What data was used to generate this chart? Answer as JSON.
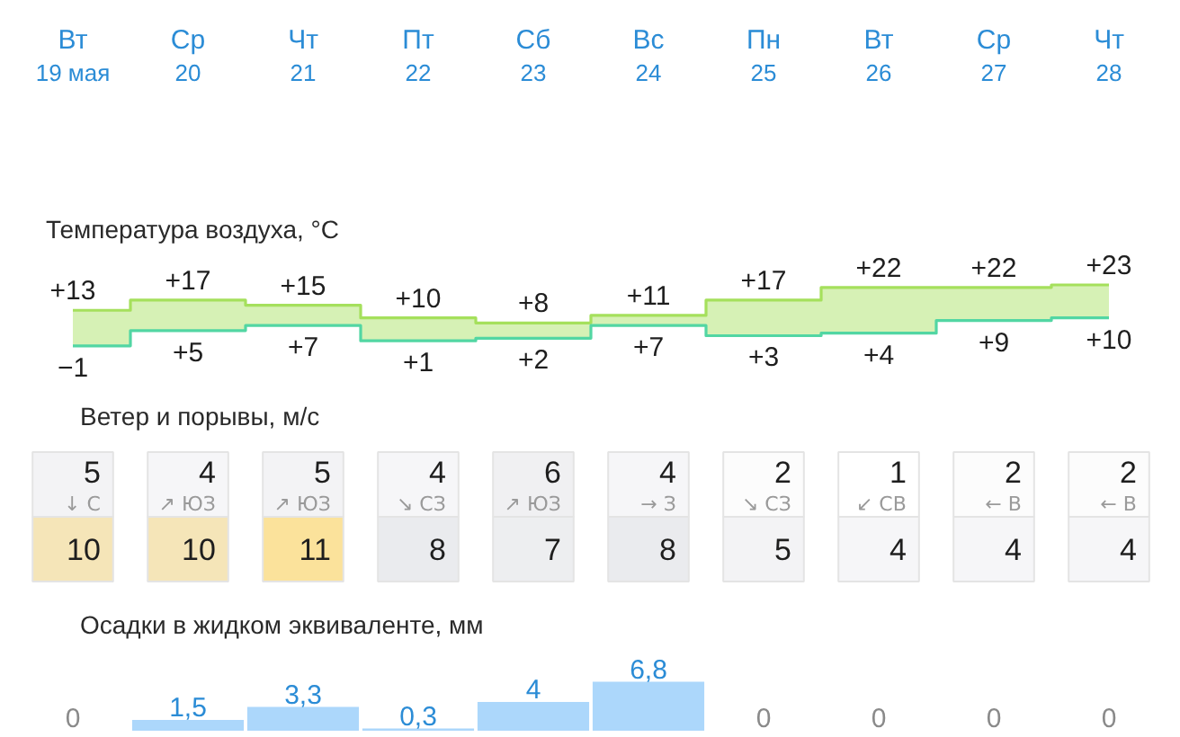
{
  "chart_data": [
    {
      "type": "step",
      "title": "Температура воздуха, °C",
      "categories": [
        "Вт 19 мая",
        "Ср 20",
        "Чт 21",
        "Пт 22",
        "Сб 23",
        "Вс 24",
        "Пн 25",
        "Вт 26",
        "Ср 27",
        "Чт 28"
      ],
      "series": [
        {
          "color": "#a5e05c",
          "values": [
            13,
            17,
            15,
            10,
            8,
            11,
            17,
            22,
            22,
            23
          ],
          "lower": [
            -1,
            5,
            7,
            1,
            2,
            7,
            3,
            4,
            9,
            10
          ],
          "upper": [
            13,
            17,
            15,
            10,
            8,
            11,
            17,
            22,
            22,
            23
          ],
          "value_labels": [
            "+13",
            "+17",
            "+15",
            "+10",
            "+8",
            "+11",
            "+17",
            "+22",
            "+22",
            "+23"
          ]
        },
        {
          "color": "#52d6a3",
          "values": [
            -1,
            5,
            7,
            1,
            2,
            7,
            3,
            4,
            9,
            10
          ],
          "value_labels": [
            "−1",
            "+5",
            "+7",
            "+1",
            "+2",
            "+7",
            "+3",
            "+4",
            "+9",
            "+10"
          ]
        }
      ]
    },
    {
      "type": "heatmap",
      "title": "Ветер и порывы, м/с",
      "categories": [
        null,
        null,
        null,
        null,
        null,
        null,
        null,
        null,
        null,
        null
      ],
      "y_categories": [
        null,
        null
      ],
      "cells": [
        [
          5,
          4,
          5,
          4,
          6,
          4,
          2,
          1,
          2,
          2
        ],
        [
          10,
          10,
          11,
          8,
          7,
          8,
          5,
          4,
          4,
          4
        ]
      ],
      "cell_labels": [
        [
          "5",
          "4",
          "5",
          "4",
          "6",
          "4",
          "2",
          "1",
          "2",
          "2"
        ],
        [
          "10",
          "10",
          "11",
          "8",
          "7",
          "8",
          "5",
          "4",
          "4",
          "4"
        ]
      ],
      "annotations": [
        "↓ С",
        "↗ ЮЗ",
        "↗ ЮЗ",
        "↘ СЗ",
        "↗ ЮЗ",
        "→ З",
        "↘ СЗ",
        "↙ СВ",
        "← В",
        "← В"
      ]
    },
    {
      "type": "bar",
      "title": "Осадки в жидком эквиваленте, мм",
      "categories": [
        null,
        null,
        null,
        null,
        null,
        null,
        null,
        null,
        null,
        null
      ],
      "values": [
        0,
        1.5,
        3.3,
        0.3,
        4,
        6.8,
        0,
        0,
        0,
        0
      ],
      "color": "#acd7fb",
      "value_labels": [
        "0",
        "1,5",
        "3,3",
        "0,3",
        "4",
        "6,8",
        "0",
        "0",
        "0",
        "0"
      ]
    }
  ]
}
